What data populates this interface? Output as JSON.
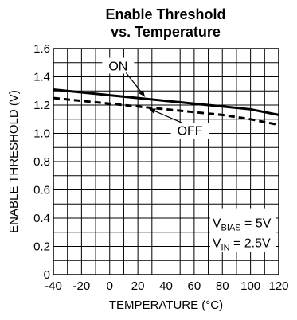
{
  "chart_data": {
    "type": "line",
    "title_lines": [
      "Enable Threshold",
      "vs. Temperature"
    ],
    "xlabel": "TEMPERATURE (°C)",
    "ylabel": "ENABLE THRESHOLD (V)",
    "xlim": [
      -40,
      120
    ],
    "ylim": [
      0,
      1.6
    ],
    "x_ticks": [
      "-40",
      "-20",
      "0",
      "20",
      "40",
      "60",
      "80",
      "100",
      "120"
    ],
    "y_ticks": [
      "0",
      "0.2",
      "0.4",
      "0.6",
      "0.8",
      "1.0",
      "1.2",
      "1.4",
      "1.6"
    ],
    "grid": true,
    "series": [
      {
        "name": "ON",
        "style": "solid",
        "x": [
          -40,
          -20,
          0,
          20,
          40,
          60,
          80,
          100,
          120
        ],
        "y": [
          1.31,
          1.29,
          1.27,
          1.25,
          1.23,
          1.21,
          1.19,
          1.17,
          1.13
        ]
      },
      {
        "name": "OFF",
        "style": "dashed",
        "x": [
          -40,
          -20,
          0,
          20,
          40,
          60,
          80,
          100,
          120
        ],
        "y": [
          1.25,
          1.23,
          1.21,
          1.19,
          1.17,
          1.15,
          1.13,
          1.1,
          1.06
        ]
      }
    ],
    "conditions": {
      "vbias_main": "V",
      "vbias_sub": "BIAS",
      "vbias_value": " = 5V",
      "vin_main": "V",
      "vin_sub": "IN",
      "vin_value": " = 2.5V"
    }
  }
}
